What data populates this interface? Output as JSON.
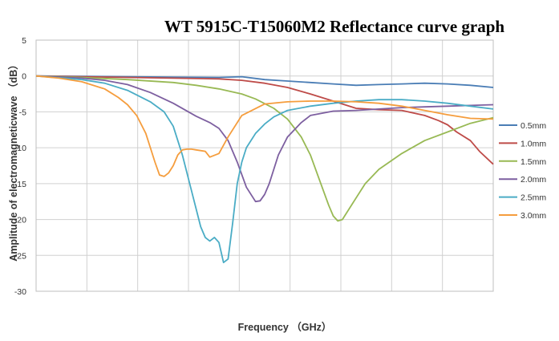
{
  "chart_data": {
    "type": "line",
    "title": "WT 5915C-T15060M2 Reflectance curve graph",
    "xlabel": "Frequency （GHz）",
    "ylabel": "Amplitude of electromagneticwave （dB）",
    "ylim": [
      -30,
      5
    ],
    "y_ticks": [
      "5",
      "0",
      "-5",
      "-10",
      "-15",
      "-20",
      "-25",
      "-30"
    ],
    "y_tick_values": [
      5,
      0,
      -5,
      -10,
      -15,
      -20,
      -25,
      -30
    ],
    "x_ticks": [],
    "xlim": [
      0,
      100
    ],
    "grid": true,
    "legend_position": "right",
    "series": [
      {
        "name": "0.5mm",
        "color": "#4a7db5",
        "x": [
          0,
          10,
          20,
          30,
          40,
          45,
          50,
          55,
          60,
          65,
          70,
          75,
          80,
          85,
          90,
          95,
          100
        ],
        "y": [
          0,
          -0.05,
          -0.1,
          -0.15,
          -0.2,
          -0.1,
          -0.5,
          -0.7,
          -0.9,
          -1.1,
          -1.3,
          -1.2,
          -1.1,
          -1.0,
          -1.1,
          -1.3,
          -1.6
        ]
      },
      {
        "name": "1.0mm",
        "color": "#be4b48",
        "x": [
          0,
          10,
          20,
          30,
          40,
          45,
          50,
          55,
          60,
          65,
          70,
          75,
          80,
          85,
          88,
          90,
          92,
          95,
          97,
          100
        ],
        "y": [
          0,
          -0.1,
          -0.2,
          -0.3,
          -0.4,
          -0.6,
          -1.0,
          -1.6,
          -2.5,
          -3.5,
          -4.5,
          -4.7,
          -4.8,
          -5.5,
          -6.2,
          -6.8,
          -7.8,
          -9.0,
          -10.5,
          -12.3
        ]
      },
      {
        "name": "1.5mm",
        "color": "#98b954",
        "x": [
          0,
          10,
          20,
          30,
          35,
          40,
          45,
          48,
          52,
          55,
          58,
          60,
          62,
          64,
          65,
          66,
          67,
          68,
          70,
          72,
          75,
          80,
          85,
          90,
          95,
          100
        ],
        "y": [
          0,
          -0.2,
          -0.5,
          -0.9,
          -1.3,
          -1.8,
          -2.5,
          -3.2,
          -4.5,
          -6.0,
          -8.5,
          -11.0,
          -14.5,
          -18.0,
          -19.5,
          -20.2,
          -20.0,
          -19.0,
          -17.0,
          -15.0,
          -13.0,
          -10.8,
          -9.0,
          -7.8,
          -6.6,
          -5.8
        ]
      },
      {
        "name": "2.0mm",
        "color": "#7d5fa0",
        "x": [
          0,
          10,
          15,
          20,
          25,
          30,
          35,
          38,
          40,
          42,
          44,
          46,
          48,
          49,
          50,
          51,
          52,
          53,
          55,
          58,
          60,
          65,
          70,
          75,
          80,
          85,
          90,
          95,
          100
        ],
        "y": [
          0,
          -0.3,
          -0.6,
          -1.2,
          -2.3,
          -3.8,
          -5.6,
          -6.5,
          -7.3,
          -9.0,
          -12.0,
          -15.5,
          -17.5,
          -17.4,
          -16.5,
          -15.0,
          -13.0,
          -11.0,
          -8.5,
          -6.5,
          -5.5,
          -4.9,
          -4.8,
          -4.6,
          -4.4,
          -4.3,
          -4.2,
          -4.1,
          -4.0
        ]
      },
      {
        "name": "2.5mm",
        "color": "#4aacc5",
        "x": [
          0,
          10,
          15,
          20,
          25,
          28,
          30,
          32,
          34,
          36,
          37,
          38,
          39,
          40,
          41,
          42,
          43,
          44,
          45,
          46,
          48,
          50,
          52,
          55,
          60,
          65,
          70,
          75,
          80,
          85,
          90,
          95,
          100
        ],
        "y": [
          0,
          -0.5,
          -1.0,
          -2.0,
          -3.6,
          -5.0,
          -7.0,
          -11.0,
          -16.0,
          -21.0,
          -22.5,
          -23.0,
          -22.5,
          -23.2,
          -26.0,
          -25.5,
          -20.5,
          -15.0,
          -12.0,
          -10.0,
          -8.0,
          -6.7,
          -5.7,
          -4.8,
          -4.2,
          -3.8,
          -3.5,
          -3.3,
          -3.3,
          -3.5,
          -3.8,
          -4.2,
          -4.6
        ]
      },
      {
        "name": "3.0mm",
        "color": "#f59d3d",
        "x": [
          0,
          5,
          10,
          15,
          18,
          20,
          22,
          24,
          25,
          26,
          27,
          28,
          29,
          30,
          31,
          32,
          33,
          34,
          35,
          37,
          38,
          40,
          42,
          45,
          50,
          55,
          60,
          65,
          70,
          75,
          80,
          85,
          90,
          95,
          100
        ],
        "y": [
          0,
          -0.3,
          -0.8,
          -1.8,
          -3.0,
          -4.0,
          -5.5,
          -8.0,
          -10.0,
          -12.0,
          -13.8,
          -14.0,
          -13.5,
          -12.5,
          -11.0,
          -10.3,
          -10.2,
          -10.2,
          -10.3,
          -10.5,
          -11.3,
          -10.8,
          -8.5,
          -5.5,
          -3.9,
          -3.6,
          -3.5,
          -3.5,
          -3.6,
          -3.8,
          -4.2,
          -4.8,
          -5.4,
          -5.9,
          -6.0
        ]
      }
    ]
  }
}
